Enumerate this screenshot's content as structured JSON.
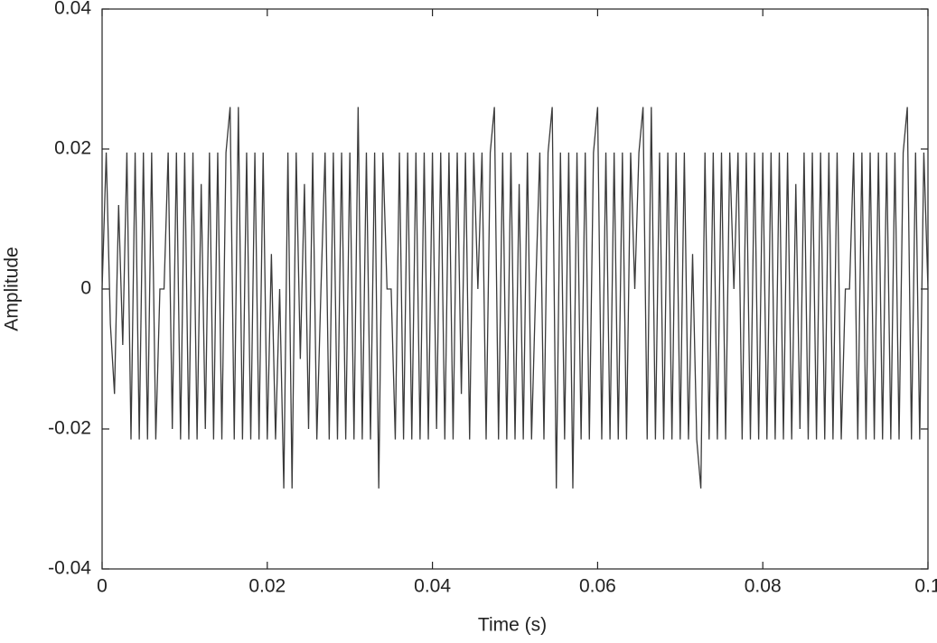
{
  "chart_data": {
    "type": "line",
    "x_label": "Time (s)",
    "y_label": "Amplitude",
    "x": [
      0,
      0.0005,
      0.001,
      0.0015,
      0.002,
      0.0025,
      0.003,
      0.0035,
      0.004,
      0.0045,
      0.005,
      0.0055,
      0.006,
      0.0065,
      0.007,
      0.0075,
      0.008,
      0.0085,
      0.009,
      0.0095,
      0.01,
      0.0105,
      0.011,
      0.0115,
      0.012,
      0.0125,
      0.013,
      0.0135,
      0.014,
      0.0145,
      0.015,
      0.0155,
      0.016,
      0.0165,
      0.017,
      0.0175,
      0.018,
      0.0185,
      0.019,
      0.0195,
      0.02,
      0.0205,
      0.021,
      0.0215,
      0.022,
      0.0225,
      0.023,
      0.0235,
      0.024,
      0.0245,
      0.025,
      0.0255,
      0.026,
      0.0265,
      0.027,
      0.0275,
      0.028,
      0.0285,
      0.029,
      0.0295,
      0.03,
      0.0305,
      0.031,
      0.0315,
      0.032,
      0.0325,
      0.033,
      0.0335,
      0.034,
      0.0345,
      0.035,
      0.0355,
      0.036,
      0.0365,
      0.037,
      0.0375,
      0.038,
      0.0385,
      0.039,
      0.0395,
      0.04,
      0.0405,
      0.041,
      0.0415,
      0.042,
      0.0425,
      0.043,
      0.0435,
      0.044,
      0.0445,
      0.045,
      0.0455,
      0.046,
      0.0465,
      0.047,
      0.0475,
      0.048,
      0.0485,
      0.049,
      0.0495,
      0.05,
      0.0505,
      0.051,
      0.0515,
      0.052,
      0.0525,
      0.053,
      0.0535,
      0.054,
      0.0545,
      0.055,
      0.0555,
      0.056,
      0.0565,
      0.057,
      0.0575,
      0.058,
      0.0585,
      0.059,
      0.0595,
      0.06,
      0.0605,
      0.061,
      0.0615,
      0.062,
      0.0625,
      0.063,
      0.0635,
      0.064,
      0.0645,
      0.065,
      0.0655,
      0.066,
      0.0665,
      0.067,
      0.0675,
      0.068,
      0.0685,
      0.069,
      0.0695,
      0.07,
      0.0705,
      0.071,
      0.0715,
      0.072,
      0.0725,
      0.073,
      0.0735,
      0.074,
      0.0745,
      0.075,
      0.0755,
      0.076,
      0.0765,
      0.077,
      0.0775,
      0.078,
      0.0785,
      0.079,
      0.0795,
      0.08,
      0.0805,
      0.081,
      0.0815,
      0.082,
      0.0825,
      0.083,
      0.0835,
      0.084,
      0.0845,
      0.085,
      0.0855,
      0.086,
      0.0865,
      0.087,
      0.0875,
      0.088,
      0.0885,
      0.089,
      0.0895,
      0.09,
      0.0905,
      0.091,
      0.0915,
      0.092,
      0.0925,
      0.093,
      0.0935,
      0.094,
      0.0945,
      0.095,
      0.0955,
      0.096,
      0.0965,
      0.097,
      0.0975,
      0.098,
      0.0985,
      0.099,
      0.0995,
      0.1
    ],
    "values": [
      0,
      0.0195,
      -0.005,
      -0.015,
      0.012,
      -0.008,
      0.0195,
      -0.0215,
      0.0195,
      -0.0215,
      0.0195,
      -0.0215,
      0.0195,
      -0.0215,
      0,
      0,
      0.0195,
      -0.02,
      0.0195,
      -0.0215,
      0.0195,
      -0.0215,
      0.0195,
      -0.0215,
      0.015,
      -0.02,
      0.0195,
      -0.0215,
      0.0195,
      -0.0215,
      0.0195,
      0.026,
      -0.0215,
      0.026,
      -0.0215,
      0.0195,
      -0.0215,
      0.0195,
      -0.0215,
      0.0195,
      -0.0215,
      0.005,
      -0.0215,
      0,
      -0.0285,
      0.0195,
      -0.0285,
      0.0195,
      -0.01,
      0.015,
      -0.02,
      0.0195,
      -0.0215,
      0,
      0.0195,
      -0.0215,
      0.0195,
      -0.0215,
      0.0195,
      -0.0215,
      0.0195,
      -0.0215,
      0.026,
      -0.0215,
      0.0195,
      -0.0215,
      0.0195,
      -0.0285,
      0.0195,
      0,
      0,
      -0.0215,
      0.0195,
      -0.0215,
      0.0195,
      -0.0215,
      0.0195,
      -0.0215,
      0.0195,
      -0.0215,
      0.0195,
      -0.02,
      0.0195,
      -0.0215,
      0.0195,
      -0.0215,
      0.0195,
      -0.015,
      0.0195,
      -0.0215,
      0.0195,
      0,
      0.0195,
      -0.0215,
      0.0195,
      0.026,
      -0.0215,
      0.0195,
      -0.0215,
      0.0195,
      -0.0215,
      0.015,
      -0.0215,
      0.0195,
      -0.0215,
      0,
      0.0195,
      -0.0215,
      0.0195,
      0.026,
      -0.0285,
      0.0195,
      -0.0215,
      0.0195,
      -0.0285,
      0.0195,
      -0.0215,
      0.0195,
      -0.0215,
      0.0195,
      0.026,
      -0.0215,
      0.0195,
      -0.0215,
      0.0195,
      -0.0215,
      0.0195,
      -0.0215,
      0.0195,
      0,
      0.0195,
      0.026,
      -0.0215,
      0.026,
      -0.0215,
      0.0195,
      -0.0215,
      0.0195,
      -0.0215,
      0.0195,
      -0.0215,
      0.0195,
      -0.0215,
      0.005,
      -0.0215,
      -0.0285,
      0.0195,
      -0.0215,
      0.0195,
      -0.0215,
      0.0195,
      -0.0215,
      0.0195,
      0,
      0.0195,
      -0.0215,
      0.0195,
      -0.0215,
      0.0195,
      -0.0215,
      0.0195,
      -0.0215,
      0.0195,
      -0.0215,
      0.0195,
      -0.0215,
      0.0195,
      -0.0215,
      0.015,
      -0.02,
      0.0195,
      -0.0215,
      0.0195,
      -0.0215,
      0.0195,
      -0.0215,
      0.0195,
      -0.0215,
      0.0195,
      -0.0215,
      0,
      0,
      0.0195,
      -0.0215,
      0.0195,
      -0.0215,
      0.0195,
      -0.0215,
      0.0195,
      -0.0215,
      0.0195,
      -0.0215,
      0.0195,
      -0.0215,
      0.0195,
      0.026,
      -0.0215,
      0.0195,
      -0.0215,
      0.0195,
      0
    ],
    "color": "#3a3a3a",
    "xlim": [
      0,
      0.1
    ],
    "xticks": [
      0,
      0.02,
      0.04,
      0.06,
      0.08,
      0.1
    ],
    "ylim": [
      -0.04,
      0.04
    ],
    "yticks": [
      -0.04,
      -0.02,
      0,
      0.02,
      0.04
    ],
    "grid": false
  }
}
